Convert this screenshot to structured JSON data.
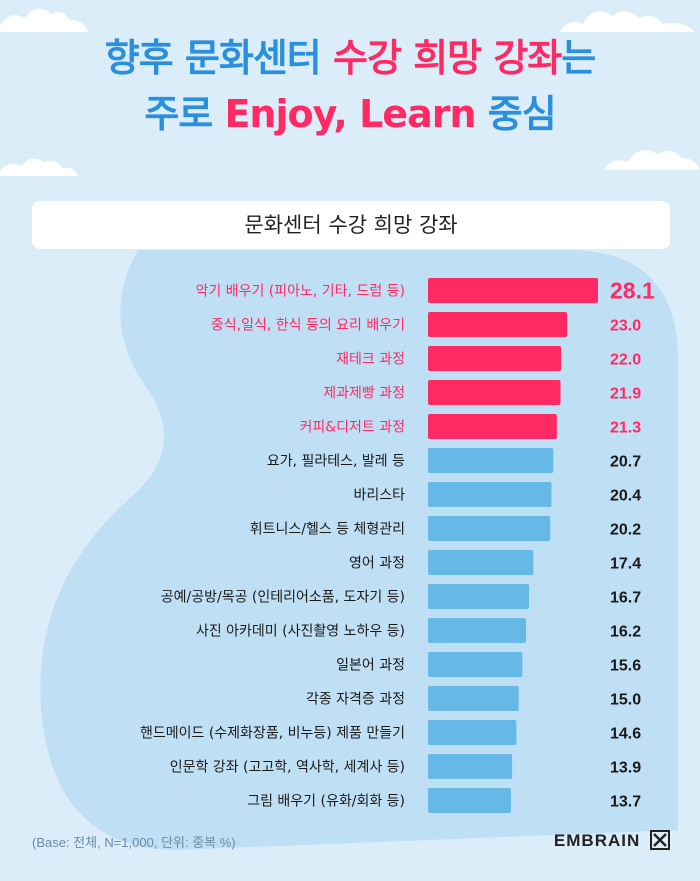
{
  "title": {
    "line1_a": "향후 문화센터 ",
    "line1_b": "수강 희망 강좌",
    "line1_c": "는",
    "line2_a": "주로 ",
    "line2_b": "Enjoy, Learn",
    "line2_c": " 중심"
  },
  "subtitle": "문화센터 수강 희망 강좌",
  "footnote": "(Base: 전체, N=1,000, 단위: 중복 %)",
  "brand": "EMBRAIN",
  "colors": {
    "highlight": "#ff2a63",
    "normal": "#66b8e6",
    "title_blue": "#2a8fdc",
    "background": "#dcedfa"
  },
  "chart_data": {
    "type": "bar",
    "orientation": "horizontal",
    "categories": [
      "악기 배우기 (피아노, 기타, 드럼 등)",
      "중식,일식, 한식 등의 요리 배우기",
      "재테크 과정",
      "제과제빵 과정",
      "커피&디저트 과정",
      "요가, 필라테스, 발레 등",
      "바리스타",
      "휘트니스/헬스 등 체형관리",
      "영어 과정",
      "공예/공방/목공 (인테리어소품, 도자기 등)",
      "사진 아카데미 (사진촬영 노하우 등)",
      "일본어 과정",
      "각종 자격증 과정",
      "핸드메이드 (수제화장품, 비누등) 제품 만들기",
      "인문학 강좌 (고고학, 역사학, 세계사 등)",
      "그림 배우기 (유화/회화 등)"
    ],
    "values": [
      28.1,
      23.0,
      22.0,
      21.9,
      21.3,
      20.7,
      20.4,
      20.2,
      17.4,
      16.7,
      16.2,
      15.6,
      15.0,
      14.6,
      13.9,
      13.7
    ],
    "value_labels": [
      "28.1",
      "23.0",
      "22.0",
      "21.9",
      "21.3",
      "20.7",
      "20.4",
      "20.2",
      "17.4",
      "16.7",
      "16.2",
      "15.6",
      "15.0",
      "14.6",
      "13.9",
      "13.7"
    ],
    "highlight_top_n": 5,
    "xlim": [
      0,
      28.1
    ],
    "unit": "%"
  }
}
